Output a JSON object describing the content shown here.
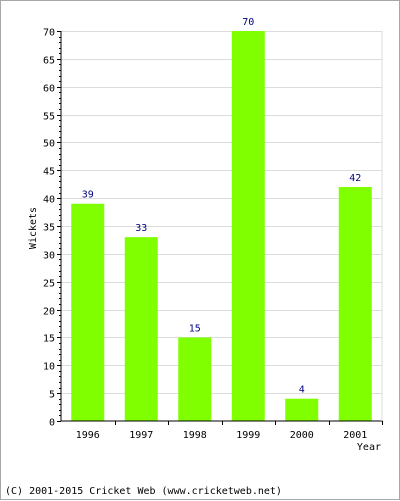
{
  "chart_data": {
    "type": "bar",
    "categories": [
      "1996",
      "1997",
      "1998",
      "1999",
      "2000",
      "2001"
    ],
    "values": [
      39,
      33,
      15,
      70,
      4,
      42
    ],
    "ylabel": "Wickets",
    "xlabel": "Year",
    "ylim": [
      0,
      70
    ],
    "yticks": [
      0,
      5,
      10,
      15,
      20,
      25,
      30,
      35,
      40,
      45,
      50,
      55,
      60,
      65,
      70
    ],
    "grid": true,
    "bar_color": "#7fff00",
    "label_color": "#000080",
    "grid_color": "#dcdcdc"
  },
  "footer": {
    "copyright": "(C) 2001-2015 Cricket Web (www.cricketweb.net)"
  }
}
